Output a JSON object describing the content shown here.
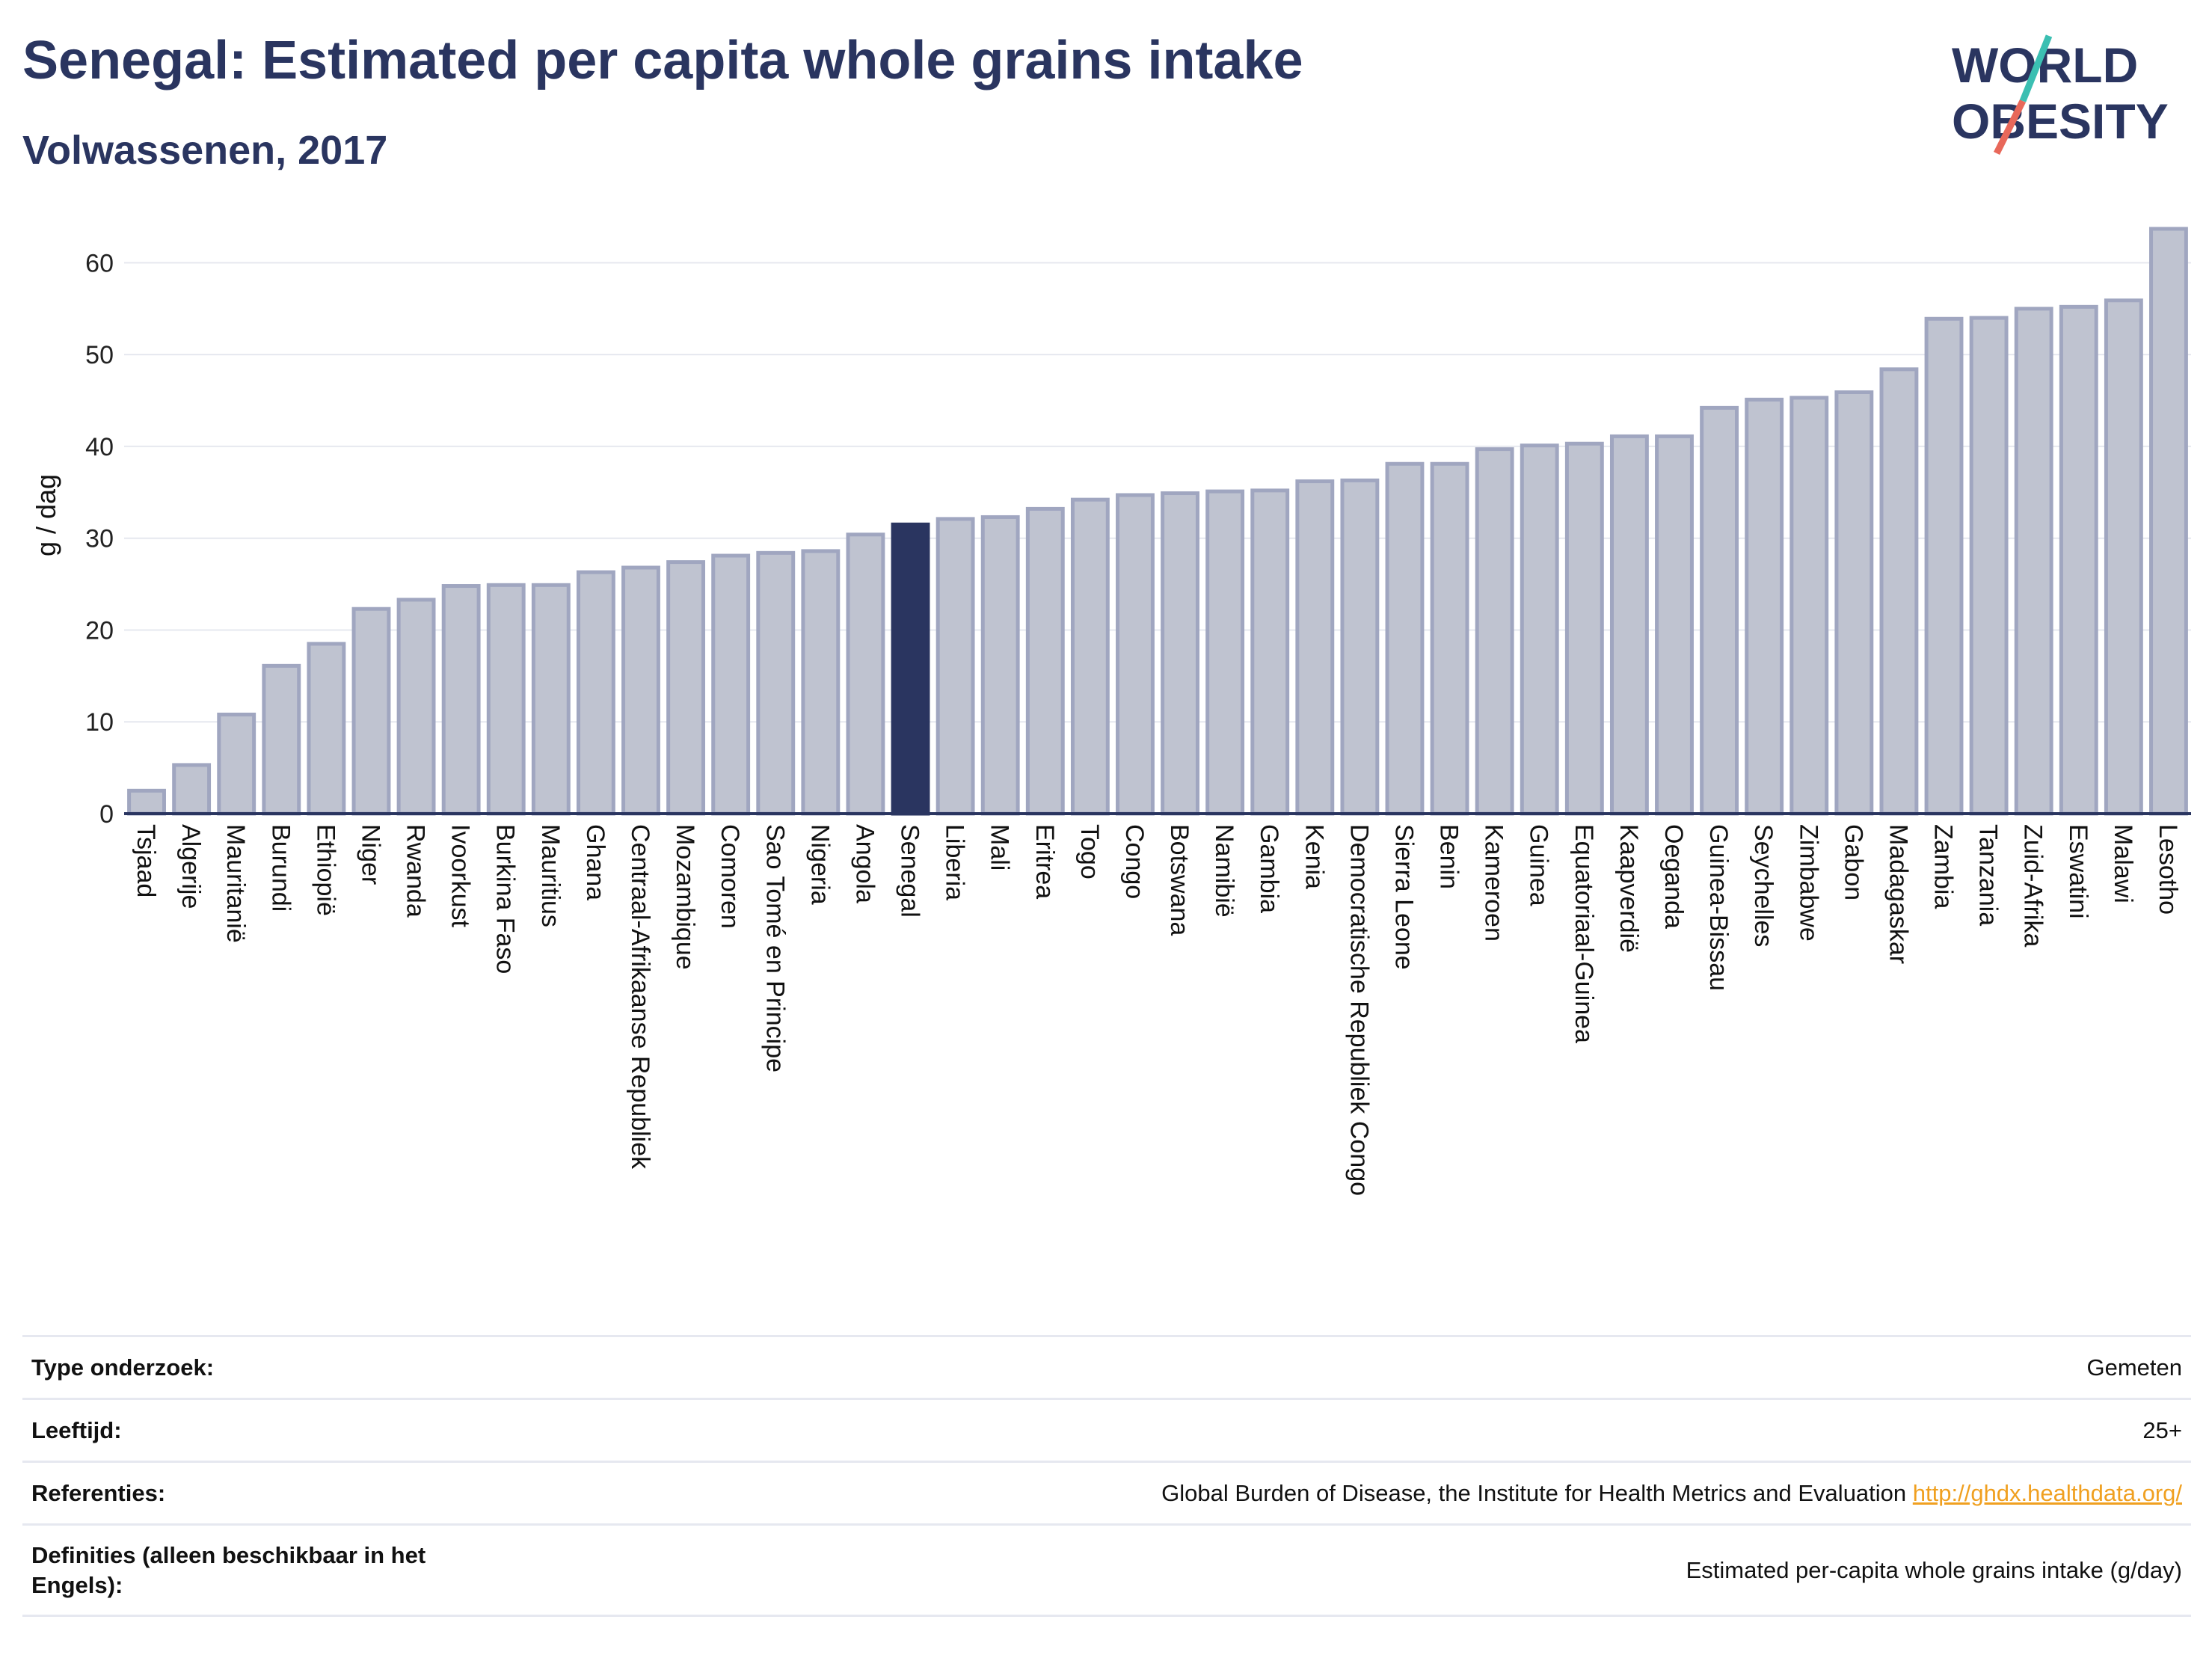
{
  "header": {
    "title": "Senegal: Estimated per capita whole grains intake",
    "subtitle": "Volwassenen, 2017"
  },
  "logo": {
    "line1": "WORLD",
    "line2": "OBESITY"
  },
  "colors": {
    "highlight": "#2a3560",
    "bar_fill": "#bfc3d0",
    "bar_stroke": "#a0a6c0",
    "title": "#2a3560",
    "link": "#f0a020",
    "logo_teal": "#3bbfb2",
    "logo_red": "#e8685a"
  },
  "chart_data": {
    "type": "bar",
    "title": "Senegal: Estimated per capita whole grains intake",
    "subtitle": "Volwassenen, 2017",
    "xlabel": "",
    "ylabel": "g / dag",
    "ylim": [
      0,
      65
    ],
    "yticks": [
      0,
      10,
      20,
      30,
      40,
      50,
      60
    ],
    "grid": true,
    "highlight": "Senegal",
    "categories": [
      "Tsjaad",
      "Algerije",
      "Mauritanië",
      "Burundi",
      "Ethiopië",
      "Niger",
      "Rwanda",
      "Ivoorkust",
      "Burkina Faso",
      "Mauritius",
      "Ghana",
      "Centraal-Afrikaanse Republiek",
      "Mozambique",
      "Comoren",
      "Sao Tomé en Principe",
      "Nigeria",
      "Angola",
      "Senegal",
      "Liberia",
      "Mali",
      "Eritrea",
      "Togo",
      "Congo",
      "Botswana",
      "Namibië",
      "Gambia",
      "Kenia",
      "Democratische Republiek Congo",
      "Sierra Leone",
      "Benin",
      "Kameroen",
      "Guinea",
      "Equatoriaal-Guinea",
      "Kaapverdië",
      "Oeganda",
      "Guinea-Bissau",
      "Seychelles",
      "Zimbabwe",
      "Gabon",
      "Madagaskar",
      "Zambia",
      "Tanzania",
      "Zuid-Afrika",
      "Eswatini",
      "Malawi",
      "Lesotho"
    ],
    "values": [
      2.5,
      5.3,
      10.8,
      16.1,
      18.5,
      22.3,
      23.3,
      24.8,
      24.9,
      24.9,
      26.3,
      26.8,
      27.4,
      28.1,
      28.4,
      28.6,
      30.4,
      31.5,
      32.1,
      32.3,
      33.2,
      34.2,
      34.7,
      34.9,
      35.1,
      35.2,
      36.2,
      36.3,
      38.1,
      38.1,
      39.7,
      40.1,
      40.3,
      41.1,
      41.1,
      44.2,
      45.1,
      45.3,
      45.9,
      48.4,
      53.9,
      54.0,
      55.0,
      55.2,
      55.9,
      63.7
    ]
  },
  "info": {
    "rows": [
      {
        "label": "Type onderzoek:",
        "value": "Gemeten"
      },
      {
        "label": "Leeftijd:",
        "value": "25+"
      },
      {
        "label": "Referenties:",
        "value": "Global Burden of Disease, the Institute for Health Metrics and Evaluation",
        "link": "http://ghdx.healthdata.org/"
      },
      {
        "label": "Definities (alleen beschikbaar in het Engels):",
        "value": "Estimated per-capita whole grains intake (g/day)"
      }
    ]
  }
}
